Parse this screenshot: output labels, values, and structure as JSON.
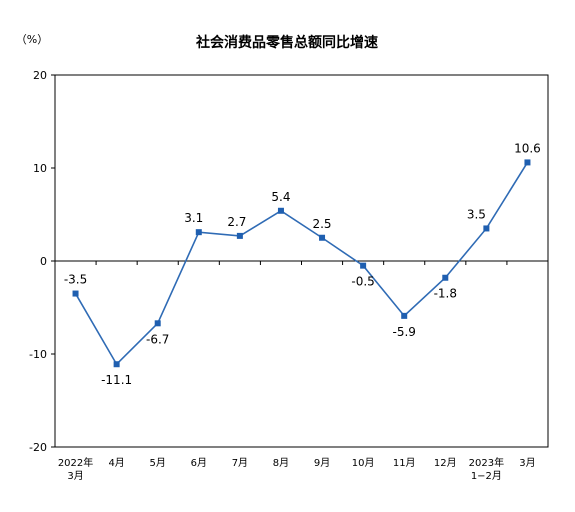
{
  "chart_data": {
    "type": "line",
    "title": "社会消费品零售总额同比增速",
    "ylabel": "（%）",
    "xlabel": "",
    "ylim": [
      -20,
      20
    ],
    "yticks": [
      "20",
      "10",
      "0",
      "-10",
      "-20"
    ],
    "categories": [
      [
        "2022年",
        "3月"
      ],
      [
        "4月"
      ],
      [
        "5月"
      ],
      [
        "6月"
      ],
      [
        "7月"
      ],
      [
        "8月"
      ],
      [
        "9月"
      ],
      [
        "10月"
      ],
      [
        "11月"
      ],
      [
        "12月"
      ],
      [
        "2023年",
        "1−2月"
      ],
      [
        "3月"
      ]
    ],
    "series": [
      {
        "values": [
          -3.5,
          -11.1,
          -6.7,
          3.1,
          2.7,
          5.4,
          2.5,
          -0.5,
          -5.9,
          -1.8,
          3.5,
          10.6
        ],
        "labels": [
          "-3.5",
          "-11.1",
          "-6.7",
          "3.1",
          "2.7",
          "5.4",
          "2.5",
          "-0.5",
          "-5.9",
          "-1.8",
          "3.5",
          "10.6"
        ]
      }
    ],
    "colors": {
      "line": "#2F6BB5",
      "marker": "#1F5FB0",
      "axis": "#000000"
    },
    "grid": false,
    "legend": "none"
  }
}
